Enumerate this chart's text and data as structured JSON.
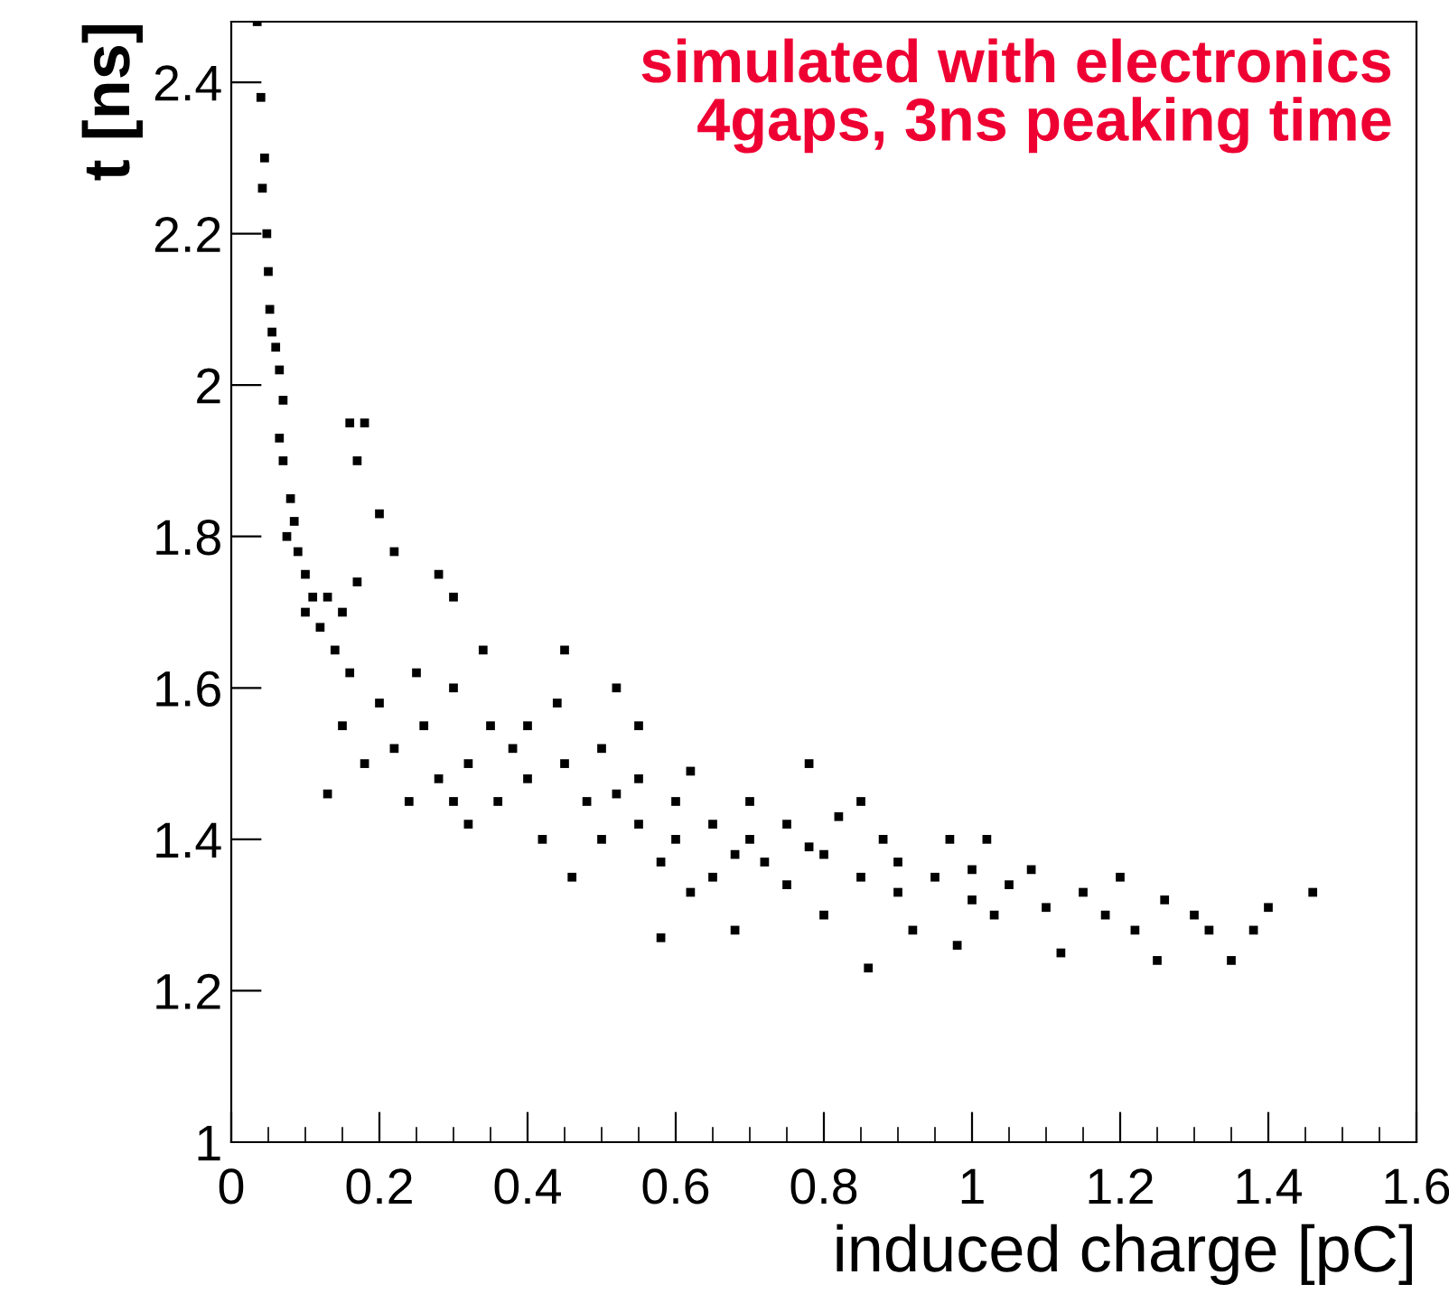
{
  "chart_data": {
    "type": "scatter",
    "xlabel": "induced charge [pC]",
    "ylabel": "t [ns]",
    "annotations": [
      "simulated with electronics\n4gaps, 3ns peaking time"
    ],
    "xlim": [
      0,
      1.6
    ],
    "ylim": [
      1,
      2.48
    ],
    "xticks": [
      0,
      0.2,
      0.4,
      0.6,
      0.8,
      1,
      1.2,
      1.4,
      1.6
    ],
    "yticks": [
      1,
      1.2,
      1.4,
      1.6,
      1.8,
      2,
      2.2,
      2.4
    ],
    "marker": "square",
    "grid": false,
    "legend": false,
    "series": [
      {
        "color": "#000000",
        "x": [
          0.035,
          0.04,
          0.045,
          0.042,
          0.048,
          0.05,
          0.052,
          0.055,
          0.06,
          0.065,
          0.07,
          0.065,
          0.07,
          0.08,
          0.085,
          0.09,
          0.075,
          0.1,
          0.11,
          0.1,
          0.12,
          0.13,
          0.15,
          0.14,
          0.16,
          0.17,
          0.18,
          0.16,
          0.17,
          0.2,
          0.22,
          0.13,
          0.15,
          0.18,
          0.2,
          0.22,
          0.24,
          0.25,
          0.28,
          0.3,
          0.26,
          0.3,
          0.32,
          0.28,
          0.3,
          0.35,
          0.34,
          0.38,
          0.36,
          0.32,
          0.4,
          0.42,
          0.44,
          0.45,
          0.46,
          0.48,
          0.5,
          0.5,
          0.52,
          0.55,
          0.55,
          0.58,
          0.6,
          0.6,
          0.62,
          0.65,
          0.65,
          0.68,
          0.7,
          0.7,
          0.72,
          0.75,
          0.75,
          0.78,
          0.8,
          0.8,
          0.82,
          0.85,
          0.86,
          0.88,
          0.9,
          0.9,
          0.92,
          0.95,
          0.97,
          1.0,
          1.0,
          1.03,
          1.05,
          1.08,
          1.1,
          1.12,
          1.15,
          1.18,
          1.2,
          1.22,
          1.25,
          1.26,
          1.3,
          1.32,
          1.35,
          1.38,
          1.4,
          1.46,
          0.58,
          0.68,
          0.98,
          0.45,
          0.52,
          0.78,
          0.62,
          0.55,
          0.4,
          0.85,
          1.02
        ],
        "values": [
          2.48,
          2.38,
          2.3,
          2.26,
          2.2,
          2.15,
          2.1,
          2.07,
          2.05,
          2.02,
          1.98,
          1.93,
          1.9,
          1.85,
          1.82,
          1.78,
          1.8,
          1.75,
          1.72,
          1.7,
          1.68,
          1.72,
          1.7,
          1.65,
          1.62,
          1.74,
          1.95,
          1.95,
          1.9,
          1.83,
          1.78,
          1.46,
          1.55,
          1.5,
          1.58,
          1.52,
          1.45,
          1.62,
          1.75,
          1.72,
          1.55,
          1.6,
          1.5,
          1.48,
          1.45,
          1.55,
          1.65,
          1.52,
          1.45,
          1.42,
          1.48,
          1.4,
          1.58,
          1.5,
          1.35,
          1.45,
          1.52,
          1.4,
          1.46,
          1.42,
          1.55,
          1.37,
          1.45,
          1.4,
          1.49,
          1.35,
          1.42,
          1.38,
          1.45,
          1.4,
          1.37,
          1.42,
          1.34,
          1.39,
          1.3,
          1.38,
          1.43,
          1.35,
          1.23,
          1.4,
          1.33,
          1.37,
          1.28,
          1.35,
          1.4,
          1.32,
          1.36,
          1.3,
          1.34,
          1.36,
          1.31,
          1.25,
          1.33,
          1.3,
          1.35,
          1.28,
          1.24,
          1.32,
          1.3,
          1.28,
          1.24,
          1.28,
          1.31,
          1.33,
          1.27,
          1.28,
          1.26,
          1.65,
          1.6,
          1.5,
          1.33,
          1.48,
          1.55,
          1.45,
          1.4
        ]
      }
    ]
  }
}
